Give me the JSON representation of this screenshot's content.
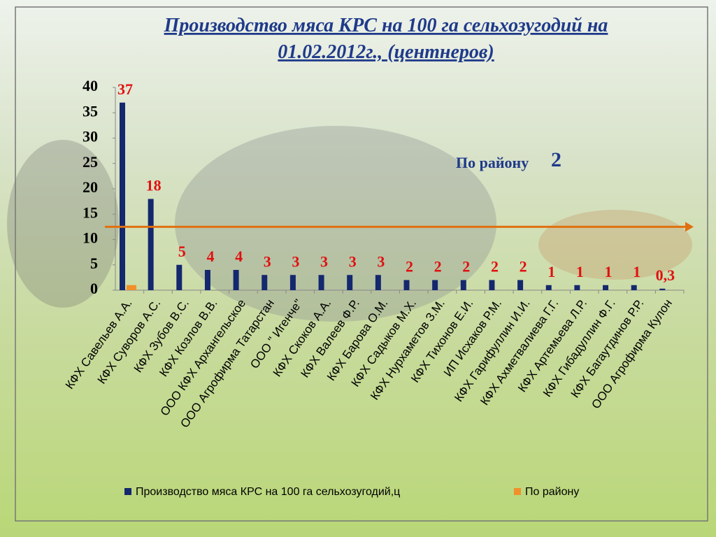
{
  "chart_data": {
    "type": "bar",
    "title": [
      "Производство мяса КРС на 100 га сельхозугодий на",
      "01.02.2012г., (центнеров)"
    ],
    "annotation": {
      "text": "По району",
      "value": "2"
    },
    "reference_line_y": 12.5,
    "categories": [
      "КФХ Савельев А.А.",
      "КФХ Суворов А.С.",
      "КФХ Зубов В.С.",
      "КФХ Козлов В.В.",
      "ООО КФХ Архангельское",
      "ООО Агрофирма Татарстан",
      "ООО \" Игенче\"",
      "КФХ Скоков А.А.",
      "КФХ Валеев Ф.Р.",
      "КФХ Барова О.М.",
      "КФХ Садыков М.Х.",
      "КФХ Нурхаметов З.М.",
      "КФХ Тихонов Е.И.",
      "ИП Исхаков Р.М.",
      "КФХ Гарифуллин И.И.",
      "КФХ Ахметвалиева Г.Г.",
      "КФХ Артемьева Л.Р.",
      "КФХ Гибадуллин Ф.Г.",
      "КФХ Багаутдинов Р.Р.",
      "ООО Агрофирма Кулон"
    ],
    "series": [
      {
        "name": "Производство мяса КРС на 100 га сельхозугодий,ц",
        "color": "#14286e",
        "values": [
          37,
          18,
          5,
          4,
          4,
          3,
          3,
          3,
          3,
          3,
          2,
          2,
          2,
          2,
          2,
          1,
          1,
          1,
          1,
          0.3
        ],
        "value_labels": [
          "37",
          "18",
          "5",
          "4",
          "4",
          "3",
          "3",
          "3",
          "3",
          "3",
          "2",
          "2",
          "2",
          "2",
          "2",
          "1",
          "1",
          "1",
          "1",
          "0,3"
        ]
      },
      {
        "name": "По району",
        "color": "#f0902a",
        "values": [
          1,
          null,
          null,
          null,
          null,
          null,
          null,
          null,
          null,
          null,
          null,
          null,
          null,
          null,
          null,
          null,
          null,
          null,
          null,
          null
        ]
      }
    ],
    "ylim": [
      0,
      40
    ],
    "yticks": [
      0,
      5,
      10,
      15,
      20,
      25,
      30,
      35,
      40
    ],
    "legend": "bottom"
  }
}
